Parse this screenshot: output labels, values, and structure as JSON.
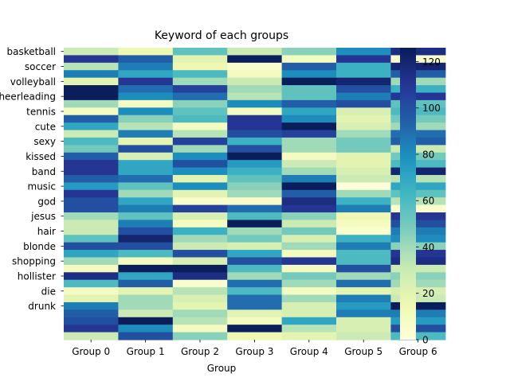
{
  "chart_data": {
    "type": "heatmap",
    "title": "Keyword of each groups",
    "xlabel": "Group",
    "ylabel": "",
    "x_categories": [
      "Group 0",
      "Group 1",
      "Group 2",
      "Group 3",
      "Group 4",
      "Group 5",
      "Group 6"
    ],
    "y_tick_labels": [
      "basketball",
      "soccer",
      "volleyball",
      "cheerleading",
      "tennis",
      "cute",
      "sexy",
      "kissed",
      "band",
      "music",
      "god",
      "jesus",
      "hair",
      "blonde",
      "shopping",
      "hollister",
      "die",
      "drunk"
    ],
    "colormap": "YlGnBu",
    "colorbar": {
      "min": 0,
      "max": 126,
      "ticks": [
        0,
        20,
        40,
        60,
        80,
        100,
        120
      ]
    },
    "grid": false,
    "matrix": [
      [
        30,
        15,
        55,
        30,
        45,
        80,
        115
      ],
      [
        110,
        95,
        20,
        125,
        10,
        110,
        5
      ],
      [
        35,
        85,
        15,
        5,
        95,
        65,
        120
      ],
      [
        85,
        70,
        60,
        10,
        80,
        65,
        95
      ],
      [
        20,
        110,
        40,
        30,
        125,
        120,
        40
      ],
      [
        125,
        90,
        105,
        40,
        55,
        100,
        65
      ],
      [
        125,
        80,
        90,
        35,
        55,
        85,
        110
      ],
      [
        40,
        10,
        45,
        80,
        95,
        100,
        55
      ],
      [
        10,
        80,
        55,
        10,
        70,
        25,
        60
      ],
      [
        95,
        45,
        60,
        110,
        80,
        20,
        50
      ],
      [
        70,
        35,
        10,
        110,
        125,
        25,
        40
      ],
      [
        30,
        85,
        35,
        100,
        105,
        40,
        90
      ],
      [
        60,
        20,
        105,
        65,
        40,
        50,
        95
      ],
      [
        50,
        100,
        40,
        100,
        40,
        50,
        30
      ],
      [
        95,
        25,
        80,
        125,
        10,
        20,
        50
      ],
      [
        110,
        70,
        100,
        75,
        30,
        20,
        60
      ],
      [
        110,
        70,
        80,
        65,
        40,
        25,
        120
      ],
      [
        95,
        90,
        20,
        55,
        85,
        30,
        35
      ],
      [
        75,
        55,
        80,
        45,
        125,
        0,
        70
      ],
      [
        110,
        40,
        20,
        40,
        95,
        40,
        55
      ],
      [
        100,
        70,
        5,
        5,
        115,
        65,
        35
      ],
      [
        100,
        85,
        105,
        90,
        110,
        85,
        5
      ],
      [
        40,
        55,
        25,
        60,
        45,
        15,
        110
      ],
      [
        30,
        85,
        10,
        125,
        30,
        10,
        100
      ],
      [
        30,
        100,
        65,
        40,
        50,
        5,
        85
      ],
      [
        55,
        120,
        40,
        50,
        25,
        65,
        80
      ],
      [
        100,
        100,
        30,
        25,
        40,
        85,
        45
      ],
      [
        70,
        60,
        100,
        70,
        10,
        60,
        110
      ],
      [
        40,
        10,
        25,
        100,
        110,
        60,
        115
      ],
      [
        10,
        125,
        125,
        60,
        10,
        100,
        30
      ],
      [
        115,
        70,
        115,
        40,
        50,
        40,
        45
      ],
      [
        60,
        95,
        5,
        90,
        40,
        90,
        40
      ],
      [
        10,
        20,
        35,
        60,
        10,
        20,
        25
      ],
      [
        20,
        40,
        25,
        90,
        40,
        85,
        30
      ],
      [
        85,
        40,
        20,
        90,
        25,
        75,
        125
      ],
      [
        95,
        30,
        40,
        20,
        25,
        85,
        85
      ],
      [
        100,
        125,
        35,
        10,
        70,
        25,
        75
      ],
      [
        110,
        80,
        10,
        125,
        35,
        25,
        100
      ],
      [
        30,
        100,
        45,
        15,
        20,
        30,
        60
      ]
    ]
  }
}
